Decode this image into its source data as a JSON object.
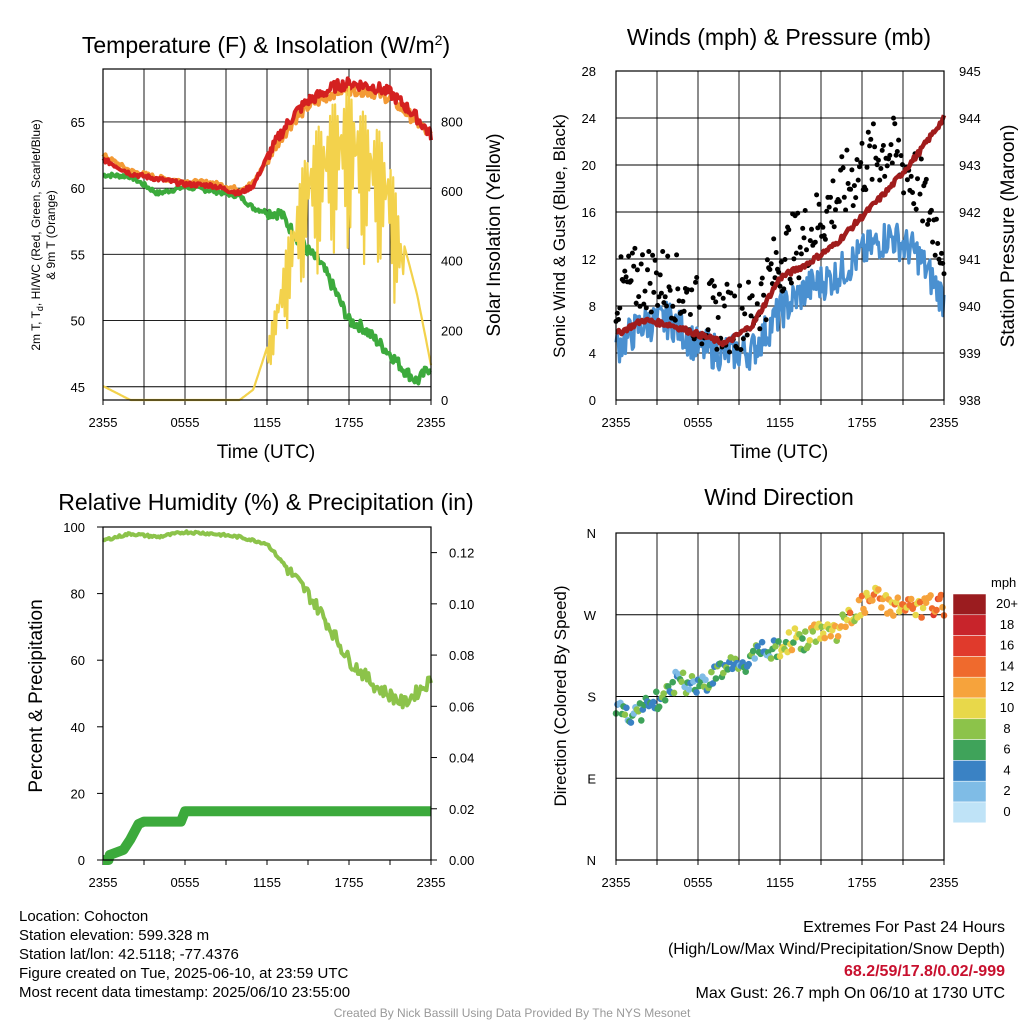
{
  "panels": {
    "temp": {
      "title": "Temperature (F) & Insolation (W/m²)",
      "ylabel_left": [
        "2m T, T_d, HI/WC (Red, Green, Scarlet/Blue)",
        "& 9m T (Orange)"
      ],
      "ylabel_right": "Solar Insolation (Yellow)",
      "xlabel": "Time (UTC)"
    },
    "wind": {
      "title": "Winds (mph) & Pressure (mb)",
      "ylabel_left": "Sonic Wind & Gust (Blue, Black)",
      "ylabel_right": "Station Pressure (Maroon)",
      "xlabel": "Time (UTC)"
    },
    "rh": {
      "title": "Relative Humidity (%) & Precipitation (in)",
      "ylabel_left": "Percent & Precipitation"
    },
    "dir": {
      "title": "Wind Direction",
      "ylabel_left": "Direction (Colored By Speed)",
      "colorbar_unit": "mph",
      "colorbar_labels": [
        "20+",
        "18",
        "16",
        "14",
        "12",
        "10",
        "8",
        "6",
        "4",
        "2",
        "0"
      ],
      "colorbar_colors": [
        "#9b1c1f",
        "#c8242b",
        "#e03a2c",
        "#ef6a2d",
        "#f6a33c",
        "#e8d84a",
        "#8cc34a",
        "#3fa35a",
        "#3a82c4",
        "#7fbce6",
        "#bfe3f7"
      ]
    }
  },
  "chart_data": [
    {
      "type": "line",
      "title": "Temperature (F) & Insolation (W/m²)",
      "xlabel": "Time (UTC)",
      "xticks": [
        "2355",
        "0555",
        "1155",
        "1755",
        "2355"
      ],
      "y_left_ticks": [
        45,
        50,
        55,
        60,
        65
      ],
      "ylim_left": [
        44,
        69
      ],
      "y_right_ticks": [
        0,
        200,
        400,
        600,
        800
      ],
      "ylim_right": [
        0,
        950
      ],
      "x_hours": [
        0,
        2,
        4,
        6,
        8,
        10,
        11,
        12,
        13,
        14,
        15,
        16,
        17,
        18,
        19,
        20,
        21,
        22,
        23,
        24
      ],
      "series": [
        {
          "color": "#d42020",
          "axis": "left",
          "values": [
            62.2,
            61.1,
            60.7,
            60.3,
            60.2,
            59.6,
            60.2,
            62.3,
            64.1,
            65.6,
            66.6,
            67.1,
            67.7,
            67.9,
            67.8,
            67.6,
            67.2,
            66.3,
            65.3,
            64.0
          ]
        },
        {
          "color": "#f39a35",
          "axis": "left",
          "values": [
            62.5,
            61.3,
            60.8,
            60.5,
            60.4,
            59.9,
            60.4,
            62.1,
            63.8,
            65.2,
            66.2,
            66.7,
            67.3,
            67.5,
            67.4,
            67.2,
            66.8,
            65.9,
            65.0,
            63.9
          ]
        },
        {
          "color": "#3caa3c",
          "axis": "left",
          "values": [
            61.0,
            60.9,
            59.6,
            60.1,
            59.8,
            59.4,
            58.5,
            58.2,
            58.1,
            56.5,
            55.3,
            54.2,
            52.2,
            50.0,
            49.5,
            48.5,
            47.5,
            46.3,
            45.4,
            46.6
          ]
        },
        {
          "color": "#f3d24c",
          "axis": "right",
          "values": [
            40,
            0,
            0,
            0,
            0,
            0,
            30,
            150,
            350,
            560,
            740,
            800,
            860,
            900,
            830,
            790,
            700,
            450,
            300,
            100
          ]
        }
      ]
    },
    {
      "type": "line",
      "title": "Winds (mph) & Pressure (mb)",
      "xlabel": "Time (UTC)",
      "xticks": [
        "2355",
        "0555",
        "1155",
        "1755",
        "2355"
      ],
      "y_left_ticks": [
        0,
        4,
        8,
        12,
        16,
        20,
        24,
        28
      ],
      "ylim_left": [
        0,
        28
      ],
      "y_right_ticks": [
        938,
        939,
        940,
        941,
        942,
        943,
        944,
        945
      ],
      "ylim_right": [
        938,
        945
      ],
      "x_hours": [
        0,
        2,
        4,
        6,
        8,
        10,
        12,
        14,
        16,
        18,
        20,
        22,
        24
      ],
      "series": [
        {
          "color": "#4a90d0",
          "axis": "left",
          "values": [
            4.5,
            6.5,
            6.8,
            4.5,
            4.0,
            4.2,
            7.5,
            9.5,
            10.5,
            12.5,
            14.0,
            12.5,
            8.5
          ]
        },
        {
          "color": "#000000",
          "axis": "left",
          "values": [
            9.0,
            10.5,
            10.0,
            7.5,
            7.0,
            7.5,
            12.0,
            14.0,
            17.0,
            20.0,
            21.5,
            18.5,
            13.0
          ]
        },
        {
          "color": "#a01c1c",
          "axis": "right",
          "values": [
            939.4,
            939.7,
            939.6,
            939.4,
            939.2,
            939.6,
            940.6,
            940.9,
            941.3,
            941.9,
            942.5,
            943.2,
            944.0
          ]
        }
      ]
    },
    {
      "type": "line",
      "title": "Relative Humidity (%) & Precipitation (in)",
      "xticks": [
        "2355",
        "0555",
        "1155",
        "1755",
        "2355"
      ],
      "y_left_ticks": [
        0,
        20,
        40,
        60,
        80,
        100
      ],
      "ylim_left": [
        0,
        100
      ],
      "y_right_ticks": [
        "0.00",
        "0.02",
        "0.04",
        "0.06",
        "0.08",
        "0.10",
        "0.12"
      ],
      "ylim_right": [
        0,
        0.13
      ],
      "x_hours": [
        0,
        2,
        4,
        6,
        8,
        10,
        12,
        14,
        15,
        16,
        18,
        20,
        22,
        24
      ],
      "series": [
        {
          "color": "#8cc34a",
          "axis": "left",
          "values": [
            96,
            98,
            97,
            98.5,
            98,
            97,
            95,
            85,
            80,
            74,
            60,
            52,
            47,
            54
          ]
        },
        {
          "color": "#3caa3c",
          "axis": "right",
          "values": [
            0.0,
            0.013,
            0.019,
            0.019,
            0.019,
            0.019,
            0.019,
            0.019,
            0.019,
            0.019,
            0.019,
            0.019,
            0.019,
            0.019
          ]
        }
      ]
    },
    {
      "type": "scatter",
      "title": "Wind Direction",
      "xticks": [
        "2355",
        "0555",
        "1155",
        "1755",
        "2355"
      ],
      "yticks": [
        "N",
        "E",
        "S",
        "W",
        "N"
      ],
      "ylim": [
        0,
        360
      ],
      "x_hours": [
        0,
        1,
        2,
        3,
        4,
        5,
        6,
        7,
        8,
        9,
        10,
        11,
        12,
        13,
        14,
        15,
        16,
        17,
        18,
        19,
        20,
        21,
        22,
        23,
        24
      ],
      "series": [
        {
          "name": "direction",
          "values": [
            170,
            160,
            165,
            175,
            195,
            195,
            195,
            200,
            215,
            210,
            225,
            230,
            230,
            245,
            240,
            255,
            250,
            265,
            280,
            290,
            280,
            280,
            275,
            280,
            280
          ]
        }
      ]
    }
  ],
  "footer": {
    "location": "Location: Cohocton",
    "elevation": "Station elevation: 599.328 m",
    "latlon": "Station lat/lon: 42.5118; -77.4376",
    "created": "Figure created on Tue, 2025-06-10, at 23:59 UTC",
    "recent": "Most recent data timestamp: 2025/06/10 23:55:00",
    "extremes_title": "Extremes For Past 24 Hours",
    "extremes_sub": "(High/Low/Max Wind/Precipitation/Snow Depth)",
    "extremes_values": "68.2/59/17.8/0.02/-999",
    "max_gust": "Max Gust: 26.7 mph On 06/10 at 1730 UTC",
    "credit": "Created By Nick Bassill Using Data Provided By The NYS Mesonet"
  }
}
